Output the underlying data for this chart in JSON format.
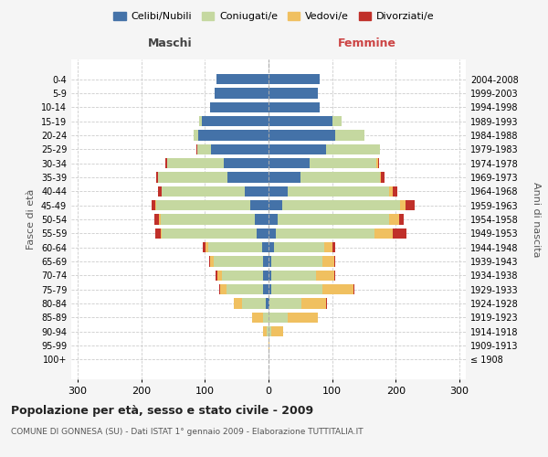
{
  "age_groups": [
    "100+",
    "95-99",
    "90-94",
    "85-89",
    "80-84",
    "75-79",
    "70-74",
    "65-69",
    "60-64",
    "55-59",
    "50-54",
    "45-49",
    "40-44",
    "35-39",
    "30-34",
    "25-29",
    "20-24",
    "15-19",
    "10-14",
    "5-9",
    "0-4"
  ],
  "birth_years": [
    "≤ 1908",
    "1909-1913",
    "1914-1918",
    "1919-1923",
    "1924-1928",
    "1929-1933",
    "1934-1938",
    "1939-1943",
    "1944-1948",
    "1949-1953",
    "1954-1958",
    "1959-1963",
    "1964-1968",
    "1969-1973",
    "1974-1978",
    "1979-1983",
    "1984-1988",
    "1989-1993",
    "1994-1998",
    "1999-2003",
    "2004-2008"
  ],
  "males": {
    "celibe": [
      0,
      0,
      0,
      0,
      4,
      8,
      8,
      8,
      10,
      18,
      22,
      28,
      38,
      65,
      70,
      90,
      110,
      105,
      92,
      85,
      82
    ],
    "coniugato": [
      0,
      0,
      3,
      8,
      38,
      58,
      65,
      78,
      85,
      150,
      148,
      148,
      130,
      108,
      90,
      22,
      8,
      4,
      0,
      0,
      0
    ],
    "vedovo": [
      0,
      0,
      5,
      18,
      12,
      10,
      8,
      6,
      4,
      2,
      2,
      2,
      0,
      0,
      0,
      0,
      0,
      0,
      0,
      0,
      0
    ],
    "divorziato": [
      0,
      0,
      0,
      0,
      0,
      2,
      2,
      2,
      5,
      8,
      8,
      5,
      5,
      3,
      2,
      2,
      0,
      0,
      0,
      0,
      0
    ]
  },
  "females": {
    "nubile": [
      0,
      0,
      0,
      0,
      2,
      5,
      5,
      5,
      8,
      12,
      15,
      22,
      30,
      50,
      65,
      90,
      105,
      100,
      80,
      78,
      80
    ],
    "coniugata": [
      0,
      0,
      5,
      30,
      50,
      80,
      70,
      80,
      80,
      155,
      175,
      185,
      160,
      125,
      105,
      85,
      45,
      15,
      0,
      0,
      0
    ],
    "vedova": [
      0,
      2,
      18,
      48,
      38,
      48,
      28,
      18,
      12,
      28,
      15,
      8,
      5,
      2,
      2,
      0,
      0,
      0,
      0,
      0,
      0
    ],
    "divorziata": [
      0,
      0,
      0,
      0,
      2,
      2,
      2,
      2,
      5,
      22,
      8,
      15,
      8,
      5,
      2,
      0,
      0,
      0,
      0,
      0,
      0
    ]
  },
  "colors": {
    "celibe_nubile": "#4472a8",
    "coniugato_a": "#c5d8a0",
    "vedovo_a": "#f0c060",
    "divorziato_a": "#c0302a"
  },
  "xlim": 310,
  "title": "Popolazione per età, sesso e stato civile - 2009",
  "subtitle": "COMUNE DI GONNESA (SU) - Dati ISTAT 1° gennaio 2009 - Elaborazione TUTTITALIA.IT",
  "ylabel_left": "Fasce di età",
  "ylabel_right": "Anni di nascita",
  "xlabel_left": "Maschi",
  "xlabel_right": "Femmine",
  "legend_labels": [
    "Celibi/Nubili",
    "Coniugati/e",
    "Vedovi/e",
    "Divorziati/e"
  ],
  "background_color": "#f5f5f5",
  "plot_bg_color": "#ffffff",
  "grid_color": "#cccccc"
}
